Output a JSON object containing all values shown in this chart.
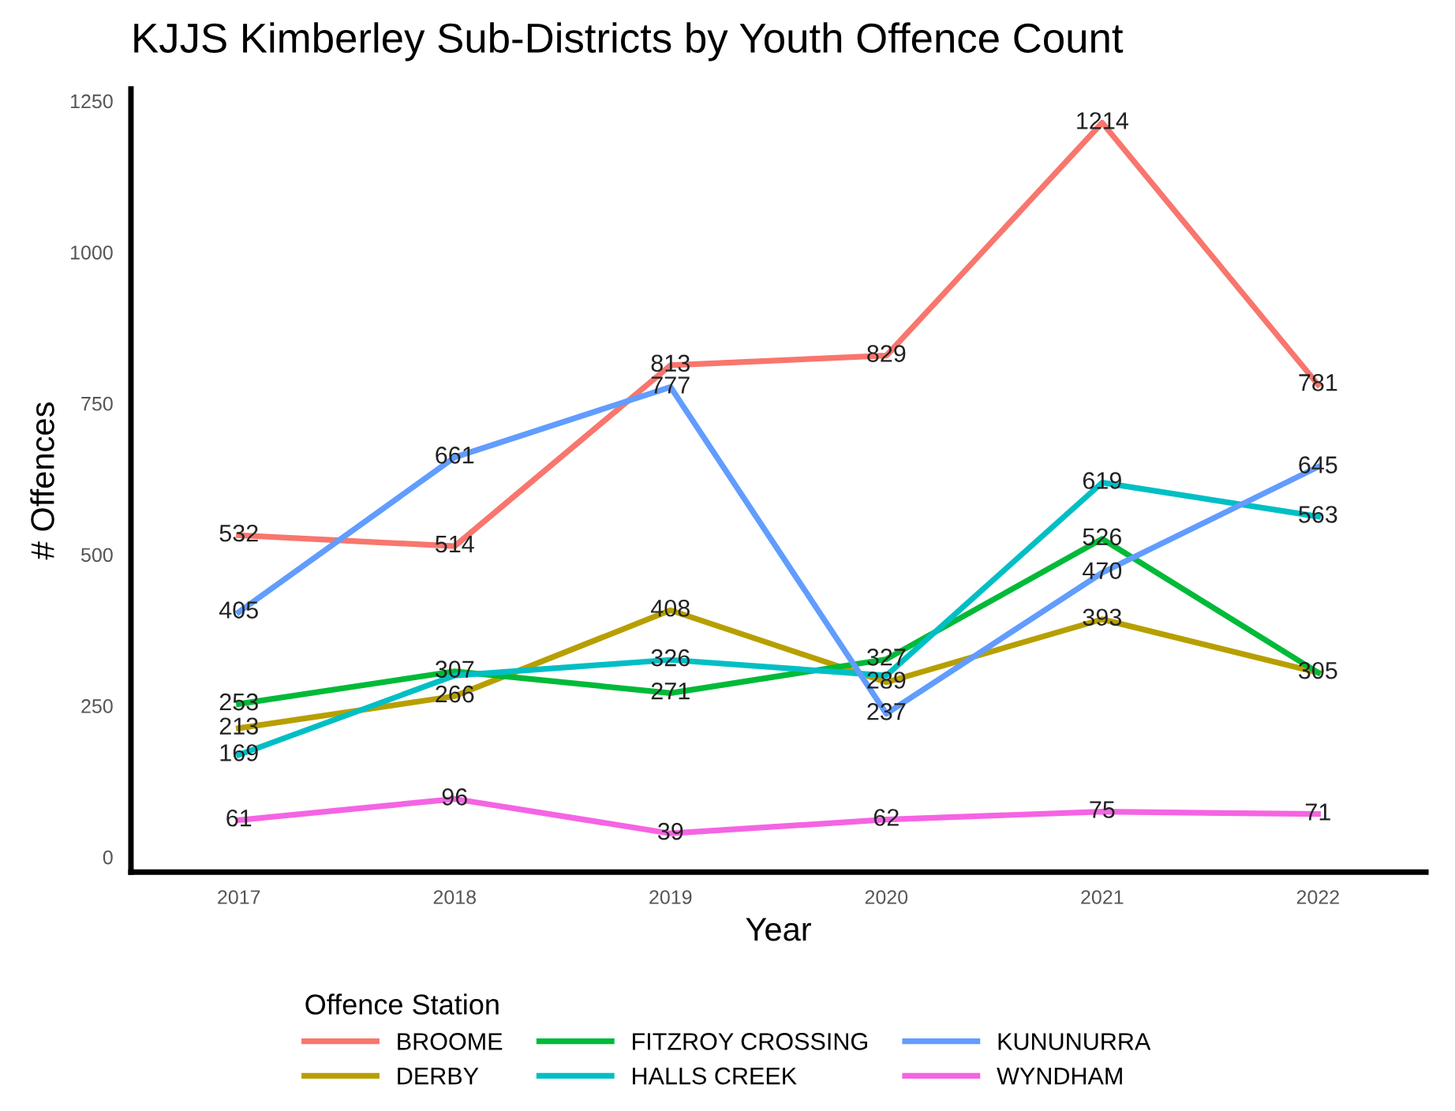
{
  "chart_data": {
    "type": "line",
    "title": "KJJS Kimberley Sub-Districts by Youth Offence Count",
    "xlabel": "Year",
    "ylabel": "# Offences",
    "legend_title": "Offence Station",
    "categories": [
      "2017",
      "2018",
      "2019",
      "2020",
      "2021",
      "2022"
    ],
    "series": [
      {
        "name": "BROOME",
        "color": "#f8766d",
        "values": [
          532,
          514,
          813,
          829,
          1214,
          781
        ],
        "value_labels": [
          "532",
          "514",
          "813",
          "829",
          "1214",
          "781"
        ]
      },
      {
        "name": "DERBY",
        "color": "#b79f00",
        "values": [
          213,
          266,
          408,
          289,
          393,
          305
        ],
        "value_labels": [
          "213",
          "266",
          "408",
          "289",
          "393",
          null
        ]
      },
      {
        "name": "FITZROY CROSSING",
        "color": "#00ba38",
        "values": [
          253,
          307,
          271,
          327,
          526,
          305
        ],
        "value_labels": [
          "253",
          "307",
          "271",
          "327",
          "526",
          "305"
        ]
      },
      {
        "name": "HALLS CREEK",
        "color": "#00bfc4",
        "values": [
          169,
          300,
          326,
          300,
          619,
          563
        ],
        "value_labels": [
          "169",
          null,
          "326",
          null,
          "619",
          "563"
        ]
      },
      {
        "name": "KUNUNURRA",
        "color": "#619cff",
        "values": [
          405,
          661,
          777,
          237,
          470,
          645
        ],
        "value_labels": [
          "405",
          "661",
          "777",
          "237",
          "470",
          "645"
        ]
      },
      {
        "name": "WYNDHAM",
        "color": "#f564e3",
        "values": [
          61,
          96,
          39,
          62,
          75,
          71
        ],
        "value_labels": [
          "61",
          "96",
          "39",
          "62",
          "75",
          "71"
        ]
      }
    ],
    "ylim": [
      -25,
      1270
    ],
    "yticks": [
      0,
      250,
      500,
      750,
      1000,
      1250
    ],
    "grid": false,
    "legend": "bottom",
    "marker": "none",
    "line_style": "solid"
  }
}
